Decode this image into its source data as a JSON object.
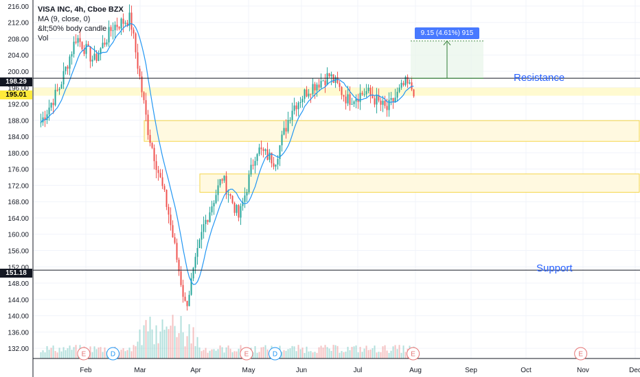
{
  "legend": {
    "title": "VISA INC, 4h, Cboe BZX",
    "ma": "MA (9, close, 0)",
    "candle_rule": "&lt;50% body candle",
    "vol": "Vol"
  },
  "price_badges": {
    "resistance_price": "198.29",
    "last_price": "195.01",
    "support_price": "151.18"
  },
  "measure_label": "9.15 (4.61%) 915",
  "annotations": {
    "resistance": "Resistance",
    "support": "Support"
  },
  "colors": {
    "up": "#26a69a",
    "down": "#ef5350",
    "ma": "#2196f3",
    "zone_fill": "#fff9e0",
    "zone_border": "#f5d64a",
    "event_earnings": "#e57373",
    "event_dividend": "#2196f3"
  },
  "chart_data": {
    "type": "candlestick",
    "y_ticks": [
      216.0,
      212.0,
      208.0,
      204.0,
      200.0,
      196.0,
      192.0,
      188.0,
      184.0,
      180.0,
      176.0,
      172.0,
      168.0,
      164.0,
      160.0,
      156.0,
      152.0,
      148.0,
      144.0,
      140.0,
      136.0,
      132.0
    ],
    "x_ticks": [
      "Feb",
      "Mar",
      "Apr",
      "May",
      "Jun",
      "Jul",
      "Aug",
      "Sep",
      "Oct",
      "Nov",
      "Dec"
    ],
    "ylim": [
      129.5,
      217.5
    ],
    "horizontal_lines": [
      {
        "name": "Resistance",
        "value": 198.29
      },
      {
        "name": "Support",
        "value": 151.18
      }
    ],
    "zones": [
      {
        "from": 182.8,
        "to": 187.9,
        "start": "Mar"
      },
      {
        "from": 170.3,
        "to": 174.8,
        "start": "Apr"
      }
    ],
    "price_path": [
      [
        "Jan-early",
        187.5
      ],
      [
        "Jan-mid",
        196.0
      ],
      [
        "Jan-late",
        208.5
      ],
      [
        "Feb-early",
        202.5
      ],
      [
        "Feb-mid",
        211.0
      ],
      [
        "Feb-late",
        213.0
      ],
      [
        "Mar-early",
        185.0
      ],
      [
        "Mar-mid",
        166.0
      ],
      [
        "Mar-late",
        142.0
      ],
      [
        "Apr-early",
        162.0
      ],
      [
        "Apr-mid",
        174.0
      ],
      [
        "Apr-late",
        164.0
      ],
      [
        "May-early",
        181.0
      ],
      [
        "May-mid",
        178.0
      ],
      [
        "May-late",
        191.0
      ],
      [
        "Jun-early",
        196.0
      ],
      [
        "Jun-mid",
        199.0
      ],
      [
        "Jun-late",
        193.0
      ],
      [
        "Jul-early",
        195.0
      ],
      [
        "Jul-mid",
        190.5
      ],
      [
        "Jul-late",
        197.0
      ],
      [
        "Aug-start",
        195.01
      ]
    ],
    "events": [
      {
        "type": "E",
        "x": "Jan-end"
      },
      {
        "type": "D",
        "x": "Feb-mid"
      },
      {
        "type": "E",
        "x": "Apr-end"
      },
      {
        "type": "D",
        "x": "May-mid"
      },
      {
        "type": "E",
        "x": "Jul-end"
      },
      {
        "type": "E",
        "x": "Oct-end"
      }
    ]
  }
}
